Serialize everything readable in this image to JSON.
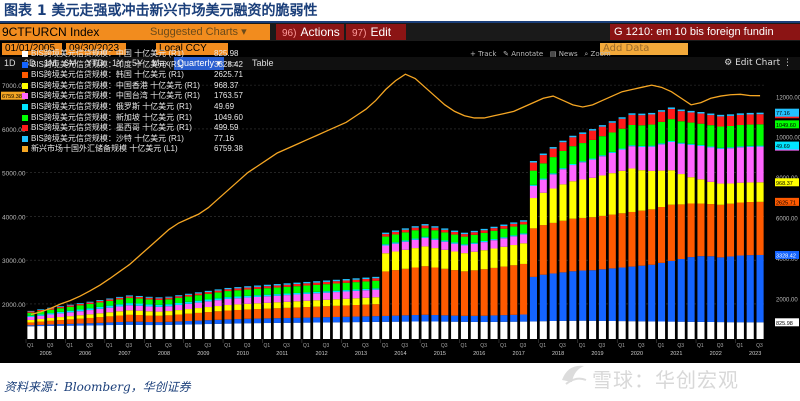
{
  "figure": {
    "title": "图表 1 美元走强或冲击新兴市场美元融资的脆弱性",
    "source": "资料来源：Bloomberg，华创证券",
    "watermark": "雪球：华创宏观"
  },
  "terminal": {
    "ticker": "9CTFURCN Index",
    "suggested": "Suggested Charts",
    "actions_num": "96)",
    "actions_label": "Actions",
    "edit_num": "97)",
    "edit_label": "Edit",
    "function_header": "G 1210: em 10 bis foreign fundin",
    "start_date": "01/01/2005",
    "end_date": "09/30/2023",
    "currency": "Local CCY",
    "add_data": "Add Data",
    "edit_chart": "Edit Chart",
    "period_buttons": [
      "1D",
      "3D",
      "1M",
      "6M",
      "YTD",
      "1Y",
      "5Y",
      "Max"
    ],
    "frequency": "Quarterly",
    "table_label": "Table",
    "tools": [
      "Track",
      "Annotate",
      "News",
      "Zoom"
    ]
  },
  "chart_data": {
    "type": "bar",
    "stacked": true,
    "x_range": [
      "2005Q1",
      "2023Q3"
    ],
    "x_tick_years": [
      "2005",
      "2006",
      "2007",
      "2008",
      "2009",
      "2010",
      "2011",
      "2012",
      "2013",
      "2014",
      "2015",
      "2016",
      "2017",
      "2018",
      "2019",
      "2020",
      "2021",
      "2022",
      "2023"
    ],
    "quarter_labels": [
      "Q1",
      "Q3"
    ],
    "left_axis": {
      "ylim": [
        1200,
        7300
      ],
      "ticks": [
        2000,
        3000,
        4000,
        5000,
        6000,
        7000
      ],
      "tick_labels": [
        "2000.00",
        "3000.00",
        "4000.00",
        "5000.00",
        "6000.00",
        "7000.00"
      ],
      "last_value_label": "6759.38"
    },
    "right_axis": {
      "ylim": [
        0,
        13200
      ],
      "ticks": [
        2000,
        4000,
        6000,
        8000,
        10000,
        12000
      ],
      "tick_labels": [
        "2000.00",
        "4000.00",
        "6000.00",
        "8000.00",
        "10000.00",
        "12000.00"
      ]
    },
    "series": [
      {
        "name": "BIS跨境美元信贷规模：中国 十亿美元 (R1)",
        "color": "#ffffff",
        "last": 825.98,
        "last_label": "825.98",
        "values": [
          630,
          640,
          650,
          655,
          660,
          665,
          670,
          680,
          690,
          700,
          705,
          700,
          690,
          690,
          700,
          710,
          720,
          730,
          740,
          750,
          760,
          770,
          780,
          785,
          790,
          795,
          800,
          805,
          810,
          815,
          820,
          825,
          830,
          835,
          840,
          845,
          850,
          855,
          860,
          865,
          868,
          865,
          860,
          855,
          850,
          845,
          840,
          845,
          850,
          855,
          860,
          870,
          880,
          890,
          895,
          900,
          905,
          900,
          895,
          890,
          885,
          880,
          875,
          870,
          865,
          860,
          855,
          850,
          845,
          840,
          835,
          830,
          828,
          826,
          826
        ]
      },
      {
        "name": "BIS跨境美元信贷规模：印度 十亿美元 (R1)",
        "color": "#1464ff",
        "last": 3328.42,
        "last_label": "3328.42",
        "values": [
          50,
          60,
          70,
          80,
          90,
          100,
          110,
          120,
          130,
          140,
          150,
          155,
          150,
          145,
          150,
          160,
          170,
          180,
          190,
          200,
          210,
          215,
          220,
          225,
          230,
          235,
          240,
          245,
          250,
          255,
          260,
          265,
          270,
          275,
          280,
          285,
          290,
          300,
          310,
          320,
          330,
          320,
          310,
          300,
          295,
          300,
          310,
          320,
          330,
          340,
          350,
          2200,
          2300,
          2350,
          2400,
          2450,
          2480,
          2500,
          2550,
          2600,
          2650,
          2700,
          2750,
          2800,
          2900,
          3000,
          3100,
          3200,
          3250,
          3250,
          3200,
          3250,
          3300,
          3320,
          3328
        ]
      },
      {
        "name": "BIS跨境美元信贷规模：韩国 十亿美元 (R1)",
        "color": "#ff5a00",
        "last": 2625.71,
        "last_label": "2625.71",
        "values": [
          140,
          160,
          180,
          200,
          220,
          240,
          260,
          280,
          300,
          320,
          340,
          330,
          320,
          315,
          320,
          340,
          360,
          380,
          400,
          420,
          440,
          450,
          460,
          470,
          480,
          490,
          500,
          510,
          520,
          530,
          540,
          550,
          560,
          570,
          580,
          590,
          2200,
          2250,
          2300,
          2350,
          2400,
          2350,
          2300,
          2250,
          2200,
          2250,
          2300,
          2350,
          2400,
          2450,
          2500,
          2400,
          2450,
          2500,
          2550,
          2600,
          2600,
          2620,
          2640,
          2660,
          2680,
          2700,
          2720,
          2740,
          2760,
          2780,
          2700,
          2650,
          2600,
          2580,
          2600,
          2610,
          2620,
          2625,
          2626
        ]
      },
      {
        "name": "BIS跨境美元信贷规模：中国香港 十亿美元 (R1)",
        "color": "#ffff00",
        "last": 968.37,
        "last_label": "968.37",
        "values": [
          120,
          130,
          140,
          150,
          160,
          170,
          180,
          190,
          200,
          210,
          220,
          215,
          210,
          205,
          210,
          220,
          230,
          240,
          250,
          260,
          270,
          275,
          280,
          285,
          290,
          295,
          300,
          305,
          310,
          315,
          320,
          325,
          330,
          335,
          340,
          345,
          900,
          920,
          940,
          960,
          980,
          960,
          940,
          920,
          900,
          920,
          940,
          960,
          980,
          1000,
          1020,
          1500,
          1600,
          1700,
          1800,
          1850,
          1900,
          1950,
          2000,
          2050,
          2100,
          2150,
          2000,
          1900,
          1800,
          1700,
          1500,
          1300,
          1200,
          1100,
          1050,
          1000,
          980,
          970,
          968
        ]
      },
      {
        "name": "BIS跨境美元信贷规模：中国台湾 十亿美元 (R1)",
        "color": "#ff66ff",
        "last": 1763.57,
        "last_label": "1763.57",
        "values": [
          150,
          160,
          170,
          180,
          190,
          200,
          210,
          220,
          230,
          240,
          250,
          245,
          240,
          235,
          240,
          250,
          260,
          270,
          280,
          290,
          300,
          305,
          310,
          315,
          320,
          325,
          330,
          335,
          340,
          345,
          350,
          355,
          360,
          365,
          370,
          375,
          380,
          390,
          400,
          410,
          420,
          410,
          400,
          390,
          380,
          390,
          400,
          410,
          420,
          430,
          440,
          600,
          650,
          700,
          750,
          800,
          850,
          900,
          950,
          1000,
          1050,
          1100,
          1150,
          1200,
          1300,
          1400,
          1500,
          1600,
          1650,
          1700,
          1720,
          1740,
          1750,
          1760,
          1764
        ]
      },
      {
        "name": "BIS跨境美元信贷规模：俄罗斯 十亿美元 (R1)",
        "color": "#00e5ff",
        "last": 49.69,
        "last_label": "49.69",
        "values": [
          60,
          65,
          70,
          75,
          80,
          85,
          90,
          95,
          100,
          105,
          110,
          108,
          106,
          104,
          102,
          100,
          98,
          96,
          94,
          92,
          90,
          88,
          86,
          84,
          82,
          80,
          78,
          76,
          74,
          72,
          70,
          69,
          68,
          67,
          66,
          65,
          64,
          63,
          62,
          61,
          60,
          60,
          59,
          58,
          57,
          56,
          56,
          55,
          55,
          54,
          54,
          54,
          53,
          53,
          53,
          52,
          52,
          52,
          52,
          51,
          51,
          51,
          51,
          51,
          50,
          50,
          50,
          50,
          50,
          50,
          50,
          50,
          50,
          50,
          50
        ]
      },
      {
        "name": "BIS跨境美元信贷规模：新加坡 十亿美元 (R1)",
        "color": "#00ff00",
        "last": 1049.6,
        "last_label": "1049.60",
        "values": [
          150,
          160,
          170,
          180,
          190,
          200,
          210,
          220,
          230,
          240,
          250,
          245,
          240,
          235,
          240,
          250,
          260,
          270,
          280,
          290,
          300,
          305,
          310,
          315,
          320,
          325,
          330,
          335,
          340,
          345,
          350,
          355,
          360,
          365,
          370,
          375,
          380,
          390,
          400,
          410,
          420,
          410,
          400,
          390,
          380,
          390,
          400,
          410,
          420,
          430,
          440,
          700,
          750,
          800,
          850,
          880,
          900,
          920,
          940,
          960,
          980,
          1000,
          1020,
          1040,
          1060,
          1080,
          1060,
          1050,
          1050,
          1050,
          1050,
          1050,
          1050,
          1050,
          1050
        ]
      },
      {
        "name": "BIS跨境美元信贷规模：墨西哥 十亿美元 (R1)",
        "color": "#ff1a1a",
        "last": 499.59,
        "last_label": "499.59",
        "values": [
          60,
          62,
          64,
          66,
          68,
          70,
          72,
          74,
          76,
          78,
          80,
          80,
          80,
          80,
          80,
          82,
          84,
          86,
          88,
          90,
          92,
          94,
          96,
          98,
          100,
          102,
          104,
          106,
          108,
          110,
          112,
          114,
          116,
          118,
          120,
          122,
          124,
          126,
          128,
          130,
          132,
          130,
          128,
          126,
          124,
          126,
          128,
          130,
          132,
          134,
          136,
          400,
          410,
          420,
          430,
          440,
          450,
          460,
          470,
          480,
          490,
          500,
          500,
          500,
          500,
          500,
          500,
          500,
          500,
          500,
          500,
          500,
          500,
          500,
          500
        ]
      },
      {
        "name": "BIS跨境美元信贷规模：沙特 十亿美元 (R1)",
        "color": "#22c1ff",
        "last": 77.16,
        "last_label": "77.16",
        "values": [
          30,
          32,
          34,
          36,
          38,
          40,
          42,
          44,
          46,
          48,
          50,
          50,
          50,
          50,
          50,
          52,
          54,
          56,
          58,
          60,
          62,
          64,
          66,
          68,
          70,
          70,
          70,
          70,
          70,
          70,
          70,
          70,
          70,
          70,
          70,
          70,
          70,
          70,
          70,
          70,
          70,
          70,
          70,
          70,
          70,
          70,
          70,
          70,
          70,
          70,
          70,
          75,
          75,
          75,
          75,
          76,
          76,
          76,
          76,
          76,
          76,
          76,
          76,
          76,
          77,
          77,
          77,
          77,
          77,
          77,
          77,
          77,
          77,
          77,
          77
        ]
      },
      {
        "name": "新兴市场十国外汇储备规模 十亿美元 (L1)",
        "color": "#f5a623",
        "axis": "left",
        "last": 6759.38,
        "last_label": "6759.38",
        "values": [
          1760,
          1820,
          1900,
          2000,
          2080,
          2180,
          2300,
          2430,
          2580,
          2740,
          2900,
          3100,
          3300,
          3500,
          3700,
          3850,
          3950,
          4050,
          4200,
          4400,
          4600,
          4800,
          5000,
          5150,
          5300,
          5450,
          5550,
          5650,
          5750,
          5850,
          5950,
          6050,
          6150,
          6300,
          6450,
          6650,
          6900,
          7100,
          7250,
          7150,
          6950,
          6750,
          6550,
          6400,
          6300,
          6250,
          6250,
          6300,
          6350,
          6400,
          6500,
          6600,
          6700,
          6750,
          6650,
          6550,
          6500,
          6550,
          6650,
          6750,
          6850,
          6900,
          6950,
          7000,
          6950,
          6850,
          6700,
          6550,
          6600,
          6700,
          6750,
          6780,
          6790,
          6760,
          6759
        ]
      }
    ]
  }
}
